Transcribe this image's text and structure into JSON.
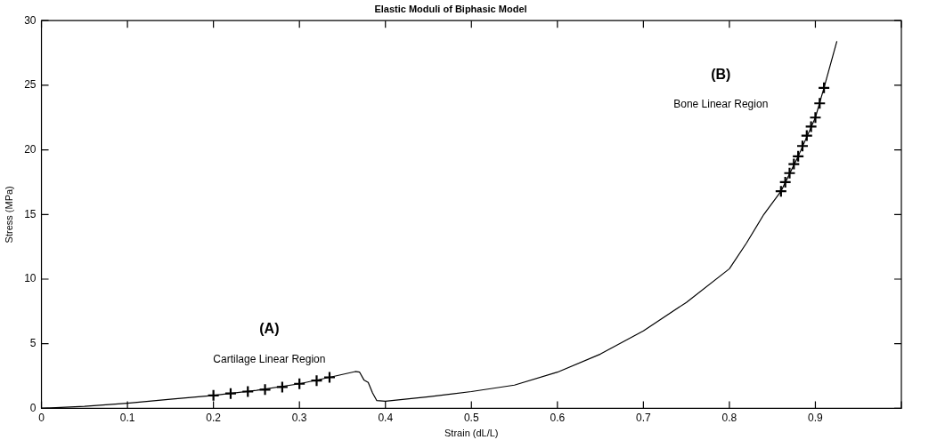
{
  "chart_data": {
    "type": "line",
    "title": "Elastic Moduli of Biphasic Model",
    "xlabel": "Strain (dL/L)",
    "ylabel": "Stress (MPa)",
    "xlim": [
      0,
      1
    ],
    "xticks": [
      0,
      0.1,
      0.2,
      0.3,
      0.4,
      0.5,
      0.6,
      0.7,
      0.8,
      0.9,
      {
        "value": 1,
        "label": null
      }
    ],
    "ylim": [
      0,
      30
    ],
    "yticks": [
      0,
      5,
      10,
      15,
      20,
      25,
      30
    ],
    "grid": false,
    "legend": false,
    "marker": "none",
    "line_style": "solid",
    "series": [
      {
        "color": "#000000",
        "x": [
          0,
          0.05,
          0.1,
          0.15,
          0.2,
          0.25,
          0.3,
          0.335,
          0.365,
          0.37,
          0.375,
          0.38,
          0.385,
          0.39,
          0.4,
          0.45,
          0.5,
          0.55,
          0.6,
          0.65,
          0.7,
          0.75,
          0.8,
          0.82,
          0.84,
          0.86,
          0.88,
          0.9,
          0.91,
          0.925
        ],
        "values": [
          0,
          0.15,
          0.4,
          0.7,
          1.0,
          1.4,
          1.9,
          2.4,
          2.85,
          2.8,
          2.2,
          2.0,
          1.2,
          0.6,
          0.55,
          0.9,
          1.3,
          1.8,
          2.8,
          4.2,
          6.0,
          8.2,
          10.8,
          12.8,
          15.0,
          16.8,
          19.5,
          22.5,
          24.8,
          28.4
        ]
      },
      {
        "type": "scatter",
        "marker": "cross",
        "color": "#000000",
        "x": [
          0.2,
          0.22,
          0.24,
          0.26,
          0.28,
          0.3,
          0.32,
          0.335
        ],
        "values": [
          1.0,
          1.15,
          1.3,
          1.45,
          1.65,
          1.9,
          2.15,
          2.4
        ]
      },
      {
        "type": "scatter",
        "marker": "cross",
        "color": "#000000",
        "x": [
          0.86,
          0.865,
          0.87,
          0.875,
          0.88,
          0.885,
          0.89,
          0.895,
          0.9,
          0.905,
          0.91
        ],
        "values": [
          16.8,
          17.5,
          18.2,
          18.9,
          19.5,
          20.3,
          21.1,
          21.8,
          22.5,
          23.6,
          24.8
        ]
      }
    ],
    "annotations": [
      "(A)",
      "Cartilage Linear Region",
      "(B)",
      "Bone Linear Region"
    ]
  }
}
